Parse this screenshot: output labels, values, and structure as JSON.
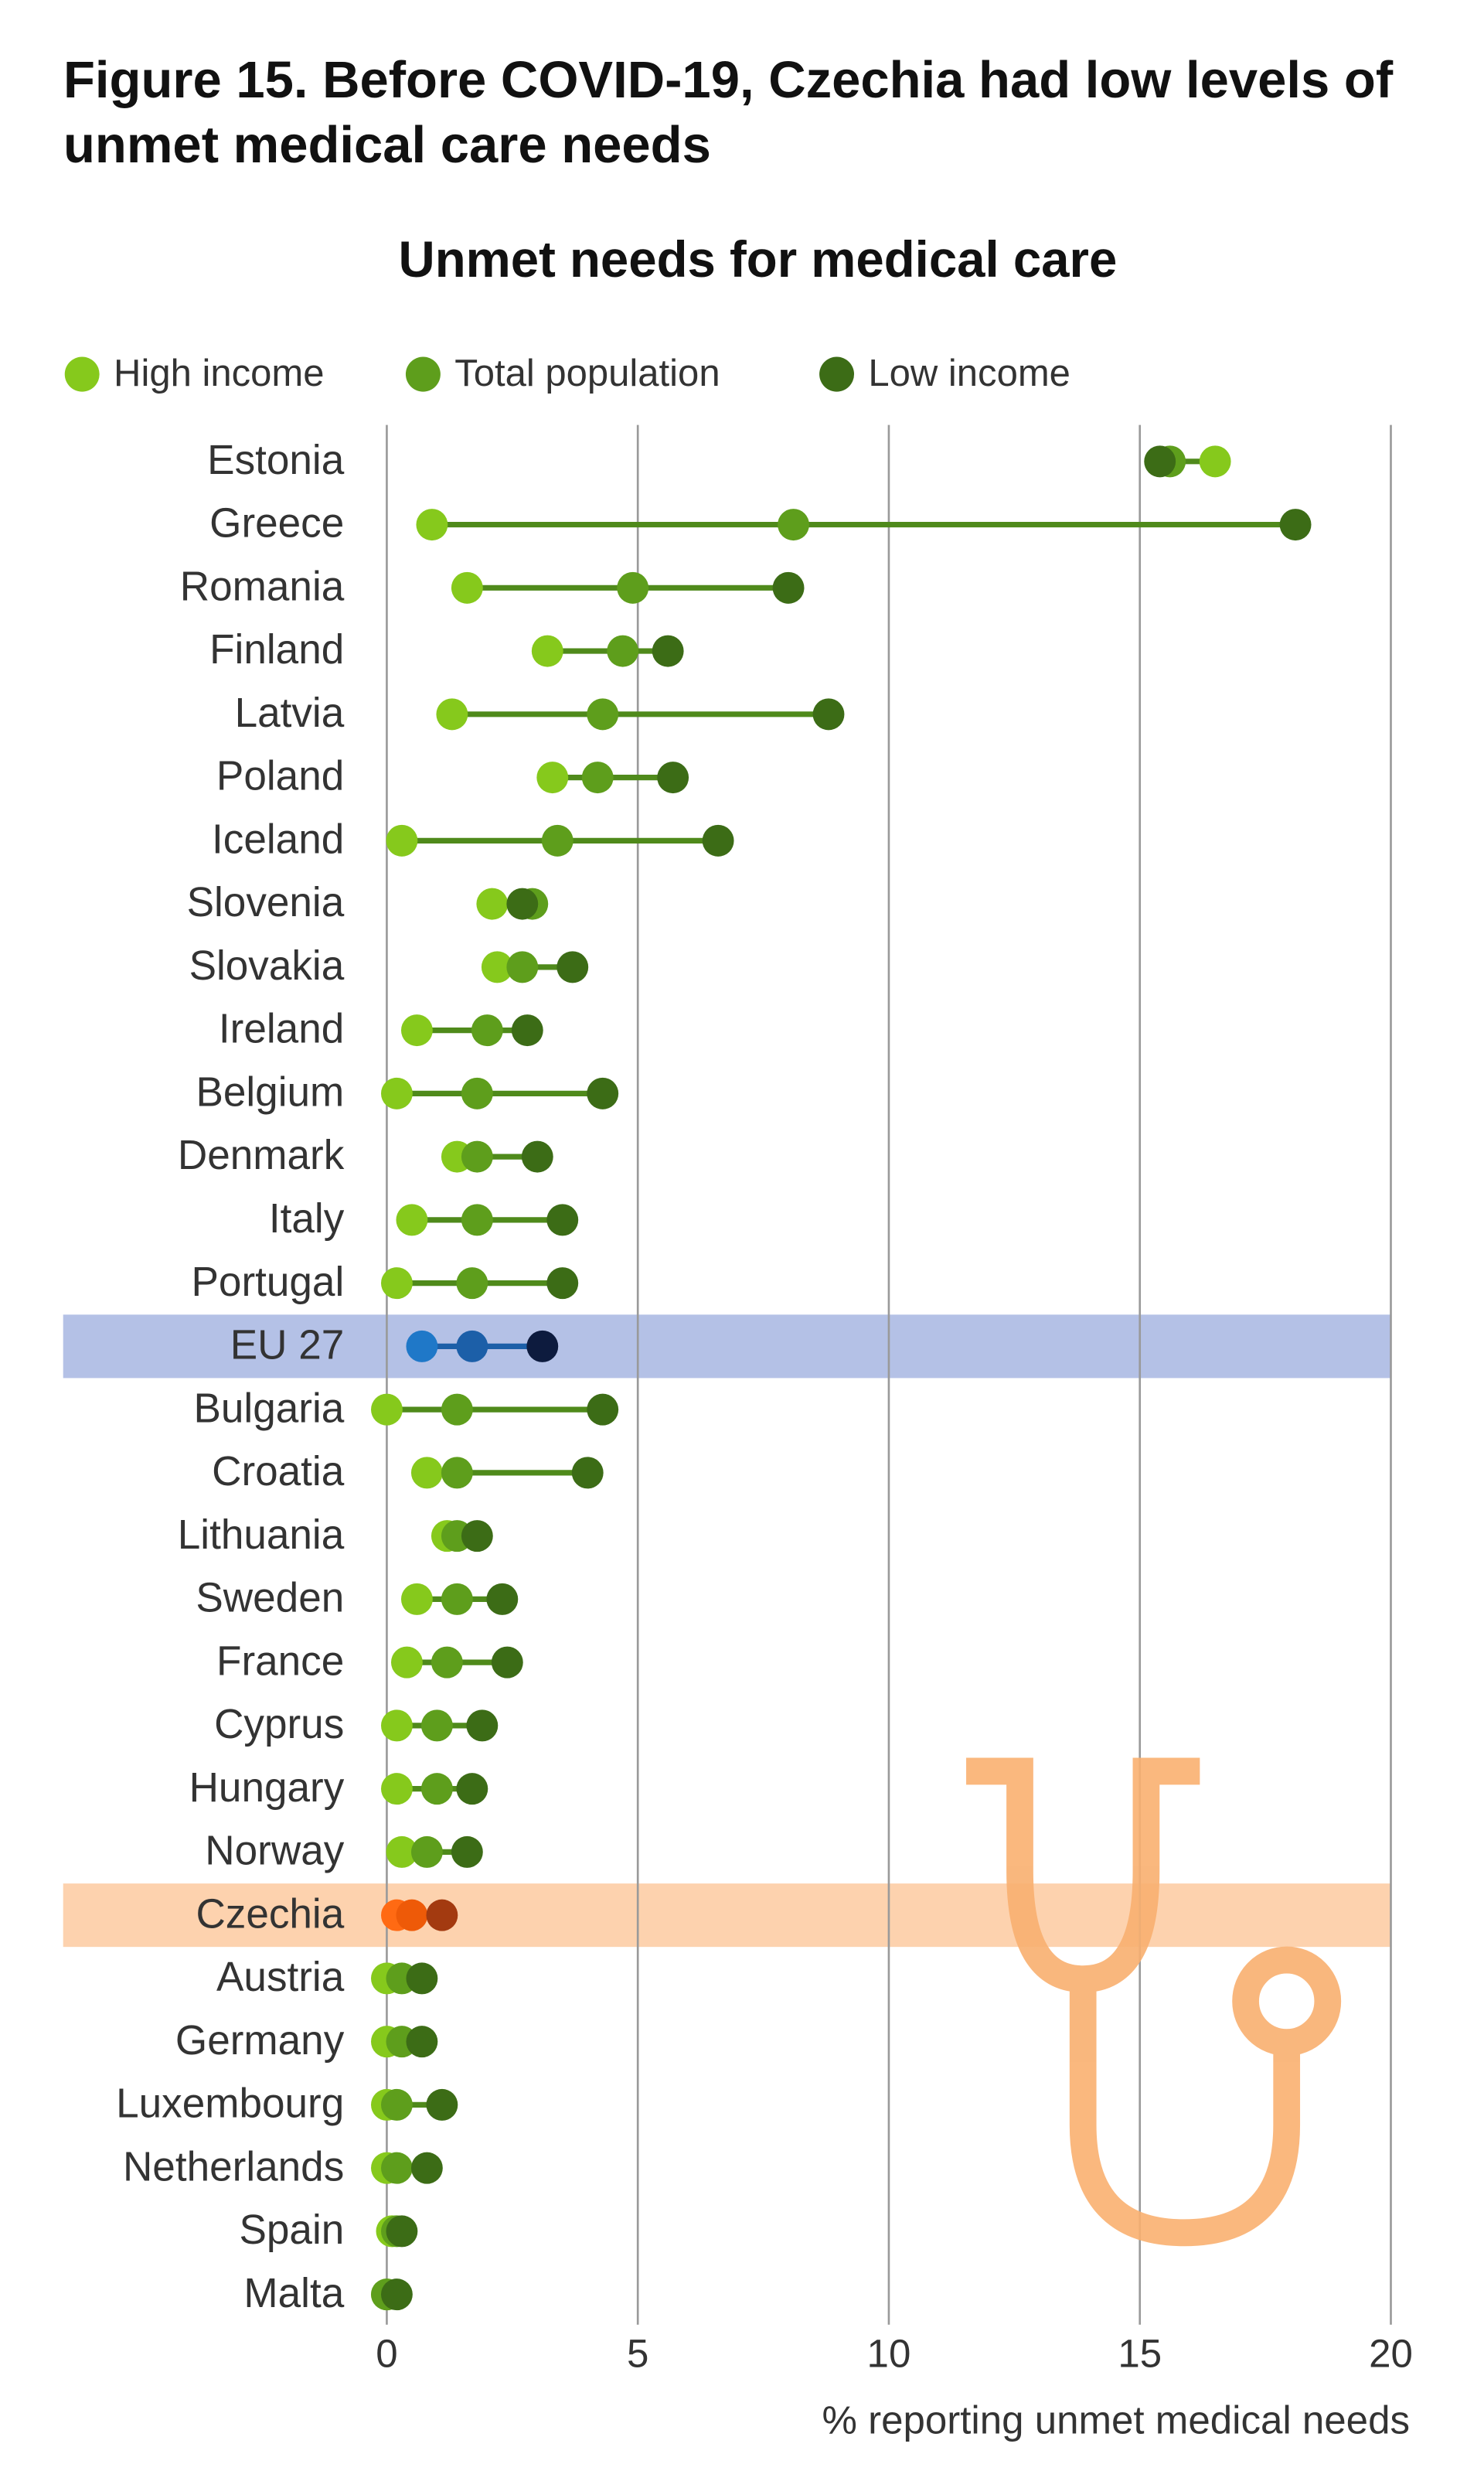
{
  "chart_data": {
    "type": "dot",
    "title": "Figure 15. Before COVID-19, Czechia had low levels of unmet medical care needs",
    "subtitle": "Unmet needs for medical care",
    "x_label": "% reporting unmet medical needs",
    "categories": [
      "Estonia",
      "Greece",
      "Romania",
      "Finland",
      "Latvia",
      "Poland",
      "Iceland",
      "Slovenia",
      "Slovakia",
      "Ireland",
      "Belgium",
      "Denmark",
      "Italy",
      "Portugal",
      "EU 27",
      "Bulgaria",
      "Croatia",
      "Lithuania",
      "Sweden",
      "France",
      "Cyprus",
      "Hungary",
      "Norway",
      "Czechia",
      "Austria",
      "Germany",
      "Luxembourg",
      "Netherlands",
      "Spain",
      "Malta"
    ],
    "series": [
      {
        "name": "High income",
        "color": "#86c91c",
        "values": [
          16.5,
          0.9,
          1.6,
          3.2,
          1.3,
          3.3,
          0.3,
          2.1,
          2.2,
          0.6,
          0.2,
          1.4,
          0.5,
          0.2,
          0.7,
          0.0,
          0.8,
          1.2,
          0.6,
          0.4,
          0.2,
          0.2,
          0.3,
          0.2,
          0.0,
          0.0,
          0.0,
          0.0,
          0.1,
          0.0
        ]
      },
      {
        "name": "Total population",
        "color": "#5e9e1c",
        "values": [
          15.6,
          8.1,
          4.9,
          4.7,
          4.3,
          4.2,
          3.4,
          2.9,
          2.7,
          2.0,
          1.8,
          1.8,
          1.8,
          1.7,
          1.7,
          1.4,
          1.4,
          1.4,
          1.4,
          1.2,
          1.0,
          1.0,
          0.8,
          0.5,
          0.3,
          0.3,
          0.2,
          0.2,
          0.2,
          0.0
        ]
      },
      {
        "name": "Low income",
        "color": "#3c6c16",
        "values": [
          15.4,
          18.1,
          8.0,
          5.6,
          8.8,
          5.7,
          6.6,
          2.7,
          3.7,
          2.8,
          4.3,
          3.0,
          3.5,
          3.5,
          3.1,
          4.3,
          4.0,
          1.8,
          2.3,
          2.4,
          1.9,
          1.7,
          1.6,
          1.1,
          0.7,
          0.7,
          1.1,
          0.8,
          0.3,
          0.2
        ]
      }
    ],
    "line_color": "#4f8a1b",
    "highlights": [
      {
        "category": "EU 27",
        "band_color": "#b4c1e6",
        "colors": [
          "#1f78c8",
          "#1c5fa8",
          "#0d1b3e"
        ]
      },
      {
        "category": "Czechia",
        "band_color": "#fdd2ae",
        "colors": [
          "#ff6a13",
          "#ee5a08",
          "#a33a10"
        ]
      }
    ],
    "xlim": [
      0,
      20
    ],
    "xticks": [
      0,
      5,
      10,
      15,
      20
    ],
    "grid": true
  }
}
